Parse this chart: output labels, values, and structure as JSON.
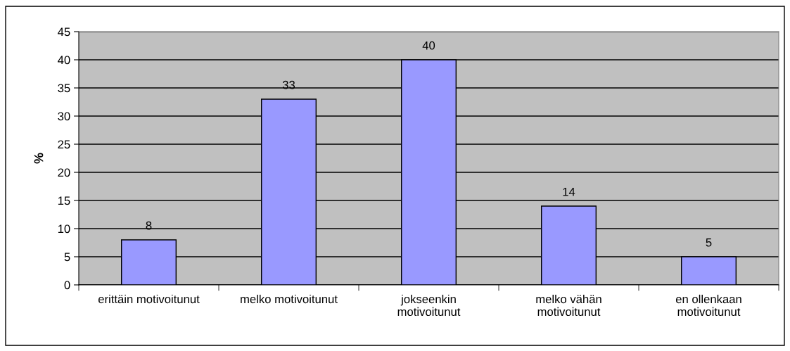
{
  "chart_data": {
    "type": "bar",
    "ylabel": "%",
    "categories": [
      "erittäin motivoitunut",
      "melko motivoitunut",
      "jokseenkin\nmotivoitunut",
      "melko vähän\nmotivoitunut",
      "en ollenkaan\nmotivoitunut"
    ],
    "values": [
      8,
      33,
      40,
      14,
      5
    ],
    "color": "#9999ff",
    "ylim": [
      0,
      45
    ],
    "yticks": [
      0,
      5,
      10,
      15,
      20,
      25,
      30,
      35,
      40,
      45
    ],
    "grid": "y",
    "data_labels": true,
    "legend": false
  }
}
